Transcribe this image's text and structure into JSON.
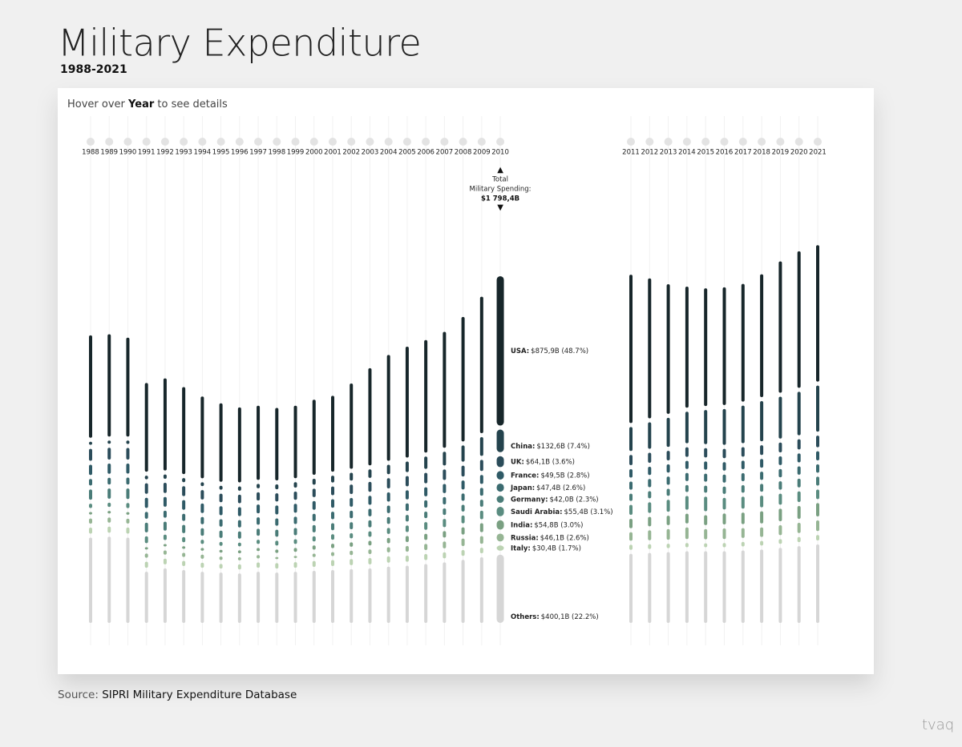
{
  "chart_data": {
    "type": "segmented-bar",
    "title": "Military Expenditure",
    "subtitle": "1988-2021",
    "instruction": [
      "Hover over ",
      "Year",
      " to see details"
    ],
    "source": [
      "Source: ",
      "SIPRI Military Expenditure Database"
    ],
    "logo": "tvaq",
    "tooltip": {
      "title_lines": [
        "Total",
        "Military Spending:"
      ],
      "total_label": "$1 798,4B"
    },
    "categories": [
      "1988",
      "1989",
      "1990",
      "1991",
      "1992",
      "1993",
      "1994",
      "1995",
      "1996",
      "1997",
      "1998",
      "1999",
      "2000",
      "2001",
      "2002",
      "2003",
      "2004",
      "2005",
      "2006",
      "2007",
      "2008",
      "2009",
      "2010",
      "2011",
      "2012",
      "2013",
      "2014",
      "2015",
      "2016",
      "2017",
      "2018",
      "2019",
      "2020",
      "2021"
    ],
    "series": [
      {
        "name": "USA:",
        "color": "#17262a",
        "values": [
          600,
          600,
          580,
          520,
          540,
          510,
          480,
          460,
          440,
          435,
          425,
          425,
          440,
          445,
          500,
          570,
          620,
          650,
          660,
          680,
          730,
          800,
          875.9,
          870,
          820,
          760,
          710,
          690,
          690,
          690,
          720,
          770,
          800,
          800
        ],
        "value_labels": [
          null,
          null,
          null,
          null,
          null,
          null,
          null,
          null,
          null,
          null,
          null,
          null,
          null,
          null,
          null,
          null,
          null,
          null,
          null,
          null,
          null,
          null,
          "$875,9B (48.7%)",
          null,
          null,
          null,
          null,
          null,
          null,
          null,
          null,
          null,
          null,
          null
        ]
      },
      {
        "name": "China:",
        "color": "#24434d",
        "values": [
          18,
          19,
          20,
          21,
          25,
          24,
          22,
          23,
          25,
          26,
          29,
          32,
          35,
          40,
          46,
          50,
          55,
          62,
          72,
          80,
          95,
          110,
          132.6,
          140,
          155,
          170,
          185,
          200,
          210,
          220,
          235,
          245,
          255,
          270
        ],
        "value_labels": [
          null,
          null,
          null,
          null,
          null,
          null,
          null,
          null,
          null,
          null,
          null,
          null,
          null,
          null,
          null,
          null,
          null,
          null,
          null,
          null,
          null,
          null,
          "$132,6B (7.4%)",
          null,
          null,
          null,
          null,
          null,
          null,
          null,
          null,
          null,
          null,
          null
        ]
      },
      {
        "name": "UK:",
        "color": "#2b4c5a",
        "values": [
          70,
          69,
          68,
          62,
          60,
          58,
          55,
          50,
          50,
          48,
          48,
          48,
          49,
          51,
          55,
          58,
          60,
          60,
          61,
          62,
          63,
          65,
          64.1,
          60,
          59,
          56,
          56,
          55,
          55,
          56,
          57,
          58,
          60,
          68
        ],
        "value_labels": [
          null,
          null,
          null,
          null,
          null,
          null,
          null,
          null,
          null,
          null,
          null,
          null,
          null,
          null,
          null,
          null,
          null,
          null,
          null,
          null,
          null,
          null,
          "$64,1B (3.6%)",
          null,
          null,
          null,
          null,
          null,
          null,
          null,
          null,
          null,
          null,
          null
        ]
      },
      {
        "name": "France:",
        "color": "#2f5a66",
        "values": [
          60,
          60,
          59,
          59,
          57,
          57,
          56,
          53,
          52,
          52,
          52,
          52,
          51,
          50,
          51,
          53,
          54,
          53,
          53,
          53,
          53,
          52,
          49.5,
          49,
          48,
          48,
          48,
          48,
          49,
          50,
          51,
          51,
          52,
          53
        ],
        "value_labels": [
          null,
          null,
          null,
          null,
          null,
          null,
          null,
          null,
          null,
          null,
          null,
          null,
          null,
          null,
          null,
          null,
          null,
          null,
          null,
          null,
          null,
          null,
          "$49,5B (2.8%)",
          null,
          null,
          null,
          null,
          null,
          null,
          null,
          null,
          null,
          null,
          null
        ]
      },
      {
        "name": "Japan:",
        "color": "#3b6b70",
        "values": [
          38,
          39,
          40,
          40,
          41,
          42,
          42,
          43,
          43,
          43,
          43,
          43,
          43,
          44,
          44,
          44,
          44,
          44,
          43,
          43,
          43,
          46,
          47.4,
          48,
          48,
          48,
          47,
          47,
          47,
          47,
          48,
          48,
          49,
          49
        ],
        "value_labels": [
          null,
          null,
          null,
          null,
          null,
          null,
          null,
          null,
          null,
          null,
          null,
          null,
          null,
          null,
          null,
          null,
          null,
          null,
          null,
          null,
          null,
          null,
          "$47,4B (2.6%)",
          null,
          null,
          null,
          null,
          null,
          null,
          null,
          null,
          null,
          null,
          null
        ]
      },
      {
        "name": "Germany:",
        "color": "#4a7c78",
        "values": [
          60,
          60,
          62,
          56,
          52,
          48,
          44,
          43,
          42,
          41,
          41,
          42,
          42,
          41,
          41,
          41,
          40,
          39,
          38,
          38,
          39,
          41,
          42.0,
          42,
          42,
          41,
          41,
          41,
          43,
          44,
          46,
          49,
          51,
          52
        ],
        "value_labels": [
          null,
          null,
          null,
          null,
          null,
          null,
          null,
          null,
          null,
          null,
          null,
          null,
          null,
          null,
          null,
          null,
          null,
          null,
          null,
          null,
          null,
          null,
          "$42,0B (2.3%)",
          null,
          null,
          null,
          null,
          null,
          null,
          null,
          null,
          null,
          null,
          null
        ]
      },
      {
        "name": "Saudi Arabia:",
        "color": "#5a8c80",
        "values": [
          25,
          25,
          30,
          40,
          32,
          30,
          25,
          23,
          22,
          25,
          28,
          28,
          30,
          32,
          30,
          32,
          35,
          38,
          45,
          48,
          46,
          50,
          55.4,
          58,
          62,
          70,
          80,
          85,
          68,
          70,
          68,
          65,
          62,
          56
        ],
        "value_labels": [
          null,
          null,
          null,
          null,
          null,
          null,
          null,
          null,
          null,
          null,
          null,
          null,
          null,
          null,
          null,
          null,
          null,
          null,
          null,
          null,
          null,
          null,
          "$55,4B (3.1%)",
          null,
          null,
          null,
          null,
          null,
          null,
          null,
          null,
          null,
          null,
          null
        ]
      },
      {
        "name": "India:",
        "color": "#7aa082",
        "values": [
          15,
          15,
          15,
          14,
          14,
          15,
          16,
          16,
          17,
          18,
          20,
          23,
          25,
          26,
          26,
          27,
          31,
          35,
          36,
          38,
          42,
          52,
          54.8,
          55,
          55,
          55,
          57,
          58,
          64,
          67,
          71,
          73,
          75,
          78
        ],
        "value_labels": [
          null,
          null,
          null,
          null,
          null,
          null,
          null,
          null,
          null,
          null,
          null,
          null,
          null,
          null,
          null,
          null,
          null,
          null,
          null,
          null,
          null,
          null,
          "$54,8B (3.0%)",
          null,
          null,
          null,
          null,
          null,
          null,
          null,
          null,
          null,
          null,
          null
        ]
      },
      {
        "name": "Russia:",
        "color": "#96b594",
        "values": [
          30,
          30,
          28,
          25,
          25,
          24,
          24,
          20,
          18,
          20,
          13,
          13,
          20,
          23,
          25,
          27,
          30,
          33,
          36,
          40,
          44,
          45,
          46.1,
          50,
          58,
          62,
          68,
          60,
          62,
          58,
          56,
          58,
          60,
          62
        ],
        "value_labels": [
          null,
          null,
          null,
          null,
          null,
          null,
          null,
          null,
          null,
          null,
          null,
          null,
          null,
          null,
          null,
          null,
          null,
          null,
          null,
          null,
          null,
          null,
          "$46,1B (2.6%)",
          null,
          null,
          null,
          null,
          null,
          null,
          null,
          null,
          null,
          null,
          null
        ]
      },
      {
        "name": "Italy:",
        "color": "#bcd3b3",
        "values": [
          35,
          36,
          36,
          35,
          33,
          30,
          29,
          27,
          30,
          31,
          32,
          33,
          34,
          35,
          36,
          37,
          37,
          36,
          35,
          35,
          34,
          32,
          30.4,
          30,
          28,
          26,
          25,
          23,
          25,
          26,
          27,
          28,
          30,
          32
        ],
        "value_labels": [
          null,
          null,
          null,
          null,
          null,
          null,
          null,
          null,
          null,
          null,
          null,
          null,
          null,
          null,
          null,
          null,
          null,
          null,
          null,
          null,
          null,
          null,
          "$30,4B (1.7%)",
          null,
          null,
          null,
          null,
          null,
          null,
          null,
          null,
          null,
          null,
          null
        ]
      },
      {
        "name": "Others:",
        "color": "#d6d6d6",
        "values": [
          500,
          505,
          500,
          300,
          320,
          310,
          300,
          295,
          290,
          300,
          295,
          300,
          305,
          310,
          315,
          320,
          330,
          335,
          345,
          355,
          370,
          385,
          400.1,
          405,
          410,
          415,
          420,
          420,
          420,
          425,
          430,
          440,
          450,
          460
        ],
        "value_labels": [
          null,
          null,
          null,
          null,
          null,
          null,
          null,
          null,
          null,
          null,
          null,
          null,
          null,
          null,
          null,
          null,
          null,
          null,
          null,
          null,
          null,
          null,
          "$400,1B (22.2%)",
          null,
          null,
          null,
          null,
          null,
          null,
          null,
          null,
          null,
          null,
          null
        ]
      }
    ]
  }
}
